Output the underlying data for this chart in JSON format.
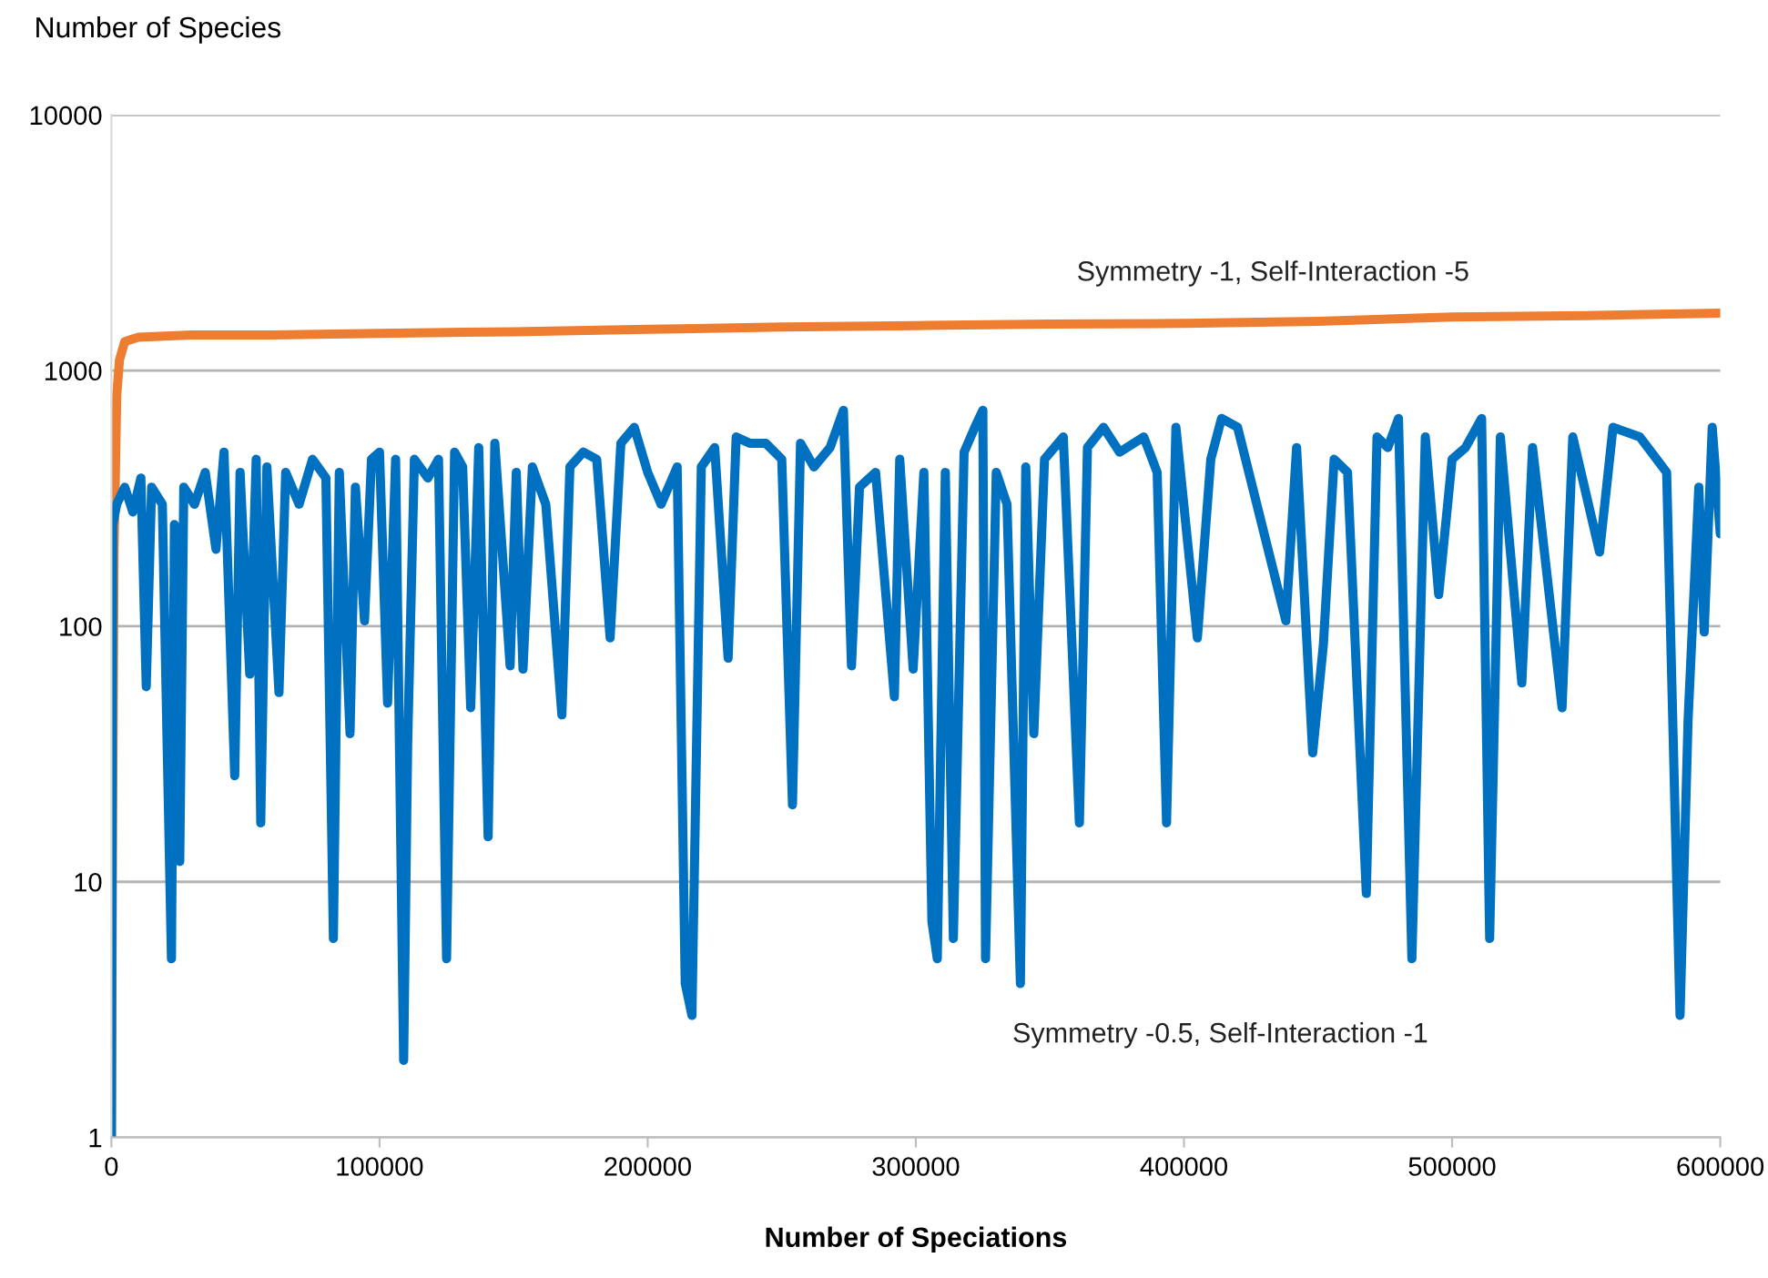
{
  "chart_data": {
    "type": "line",
    "ylabel": "Number of Species",
    "xlabel": "Number of Speciations",
    "log": "y",
    "ylim": [
      1,
      10000
    ],
    "yticks": [
      1,
      10,
      100,
      1000,
      10000
    ],
    "xlim": [
      0,
      600000
    ],
    "xticks": [
      0,
      100000,
      200000,
      300000,
      400000,
      500000,
      600000
    ],
    "grid": "y",
    "legend": false,
    "line_style": "solid",
    "marker": "none",
    "series": [
      {
        "name": "Symmetry -1, Self-Interaction -5",
        "color": "#ed7d31",
        "x": [
          0,
          500,
          1000,
          2000,
          3000,
          5000,
          10000,
          30000,
          60000,
          100000,
          150000,
          200000,
          250000,
          300000,
          350000,
          400000,
          450000,
          500000,
          550000,
          600000
        ],
        "values": [
          1,
          20,
          200,
          800,
          1100,
          1300,
          1350,
          1380,
          1380,
          1400,
          1420,
          1450,
          1480,
          1500,
          1520,
          1530,
          1560,
          1620,
          1640,
          1680
        ]
      },
      {
        "name": "Symmetry -0.5, Self-Interaction -1",
        "color": "#0070c0",
        "x": [
          0,
          500,
          2000,
          5000,
          8000,
          11000,
          13000,
          15000,
          19000,
          22400,
          23500,
          25500,
          27000,
          31000,
          35000,
          39000,
          42000,
          46000,
          48000,
          51600,
          54000,
          55700,
          58000,
          62500,
          65000,
          70000,
          75000,
          80000,
          82800,
          85000,
          89000,
          91000,
          94400,
          97000,
          100000,
          103000,
          106000,
          109000,
          110500,
          113000,
          118000,
          122000,
          125000,
          128000,
          131000,
          134000,
          137000,
          140500,
          143000,
          148700,
          151000,
          153500,
          157000,
          162000,
          168000,
          171000,
          176000,
          181000,
          186000,
          190000,
          195000,
          200000,
          205000,
          211000,
          214000,
          216500,
          220000,
          225000,
          230000,
          233000,
          238000,
          244000,
          250000,
          254000,
          257000,
          262000,
          268000,
          273000,
          276000,
          279000,
          285000,
          292000,
          294000,
          299000,
          303000,
          306000,
          308000,
          311000,
          314000,
          318000,
          322000,
          325000,
          326000,
          330000,
          334000,
          339000,
          341000,
          344000,
          348000,
          355000,
          361000,
          364000,
          370000,
          376000,
          385000,
          390000,
          393500,
          397000,
          405000,
          410000,
          414000,
          420000,
          438000,
          442000,
          448000,
          452000,
          456000,
          461000,
          468000,
          472000,
          476000,
          480000,
          485000,
          490000,
          495000,
          500000,
          505000,
          511000,
          514000,
          518000,
          526000,
          530000,
          541000,
          545000,
          555000,
          560000,
          570000,
          580000,
          585000,
          588000,
          592000,
          594000,
          597000,
          600000
        ],
        "values": [
          1,
          250,
          300,
          350,
          280,
          380,
          58,
          350,
          300,
          5,
          250,
          12,
          350,
          300,
          400,
          200,
          480,
          26,
          400,
          65,
          450,
          17,
          420,
          55,
          400,
          300,
          450,
          380,
          6,
          400,
          38,
          350,
          105,
          450,
          480,
          50,
          450,
          2,
          35,
          450,
          380,
          450,
          5,
          480,
          420,
          48,
          500,
          15,
          520,
          70,
          400,
          68,
          420,
          300,
          45,
          420,
          480,
          450,
          90,
          520,
          600,
          400,
          300,
          420,
          4,
          3,
          420,
          500,
          75,
          550,
          520,
          520,
          450,
          20,
          520,
          420,
          500,
          700,
          70,
          350,
          400,
          53,
          450,
          68,
          400,
          7,
          5,
          400,
          6,
          480,
          600,
          700,
          5,
          400,
          300,
          4,
          420,
          38,
          450,
          550,
          17,
          500,
          600,
          480,
          550,
          400,
          17,
          600,
          90,
          450,
          650,
          600,
          105,
          500,
          32,
          85,
          450,
          400,
          9,
          550,
          500,
          650,
          5,
          550,
          133,
          450,
          500,
          650,
          6,
          550,
          60,
          500,
          48,
          550,
          195,
          600,
          550,
          400,
          3,
          43,
          350,
          95,
          600,
          230
        ]
      }
    ]
  }
}
